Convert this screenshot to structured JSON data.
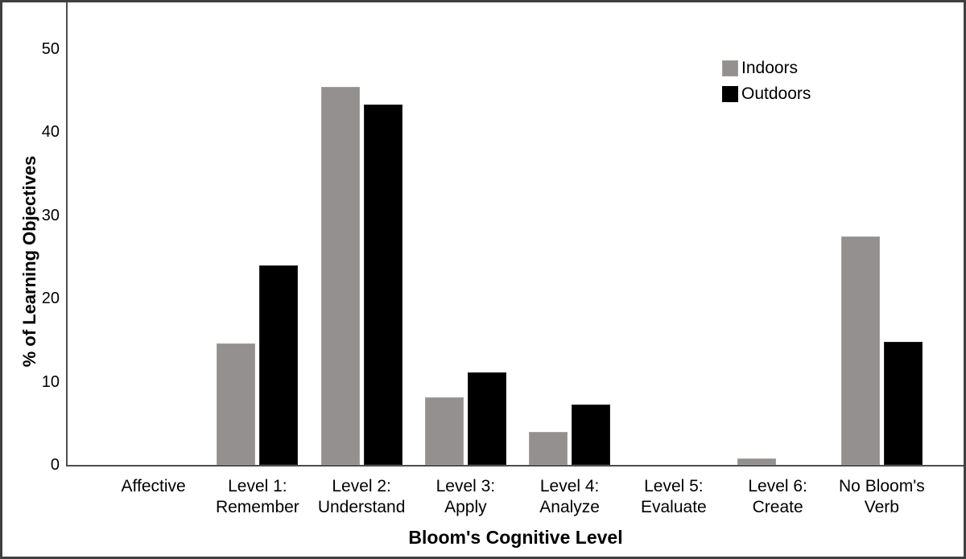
{
  "chart_data": {
    "type": "bar",
    "title": "",
    "xlabel": "Bloom's Cognitive Level",
    "ylabel": "% of Learning Objectives",
    "categories": [
      "Affective",
      "Level 1:\nRemember",
      "Level 2:\nUnderstand",
      "Level 3:\nApply",
      "Level 4:\nAnalyze",
      "Level 5:\nEvaluate",
      "Level 6:\nCreate",
      "No Bloom's\nVerb"
    ],
    "series": [
      {
        "name": "Indoors",
        "color": "#949090",
        "values": [
          0,
          14.6,
          45.4,
          8.1,
          4.0,
          0,
          0.8,
          27.5
        ]
      },
      {
        "name": "Outdoors",
        "color": "#000000",
        "values": [
          0,
          24.0,
          43.3,
          11.1,
          7.3,
          0,
          0,
          14.8
        ]
      }
    ],
    "y_ticks": [
      0,
      10,
      20,
      30,
      40,
      50
    ],
    "ylim": [
      0,
      55.6
    ],
    "grid": false,
    "legend_position": "top-right",
    "colors": {
      "indoors_bar": "#949090",
      "outdoors_bar": "#000000",
      "axis_line": "#4d4d4d",
      "frame_border": "#3f3f3f",
      "text": "#000000"
    }
  }
}
